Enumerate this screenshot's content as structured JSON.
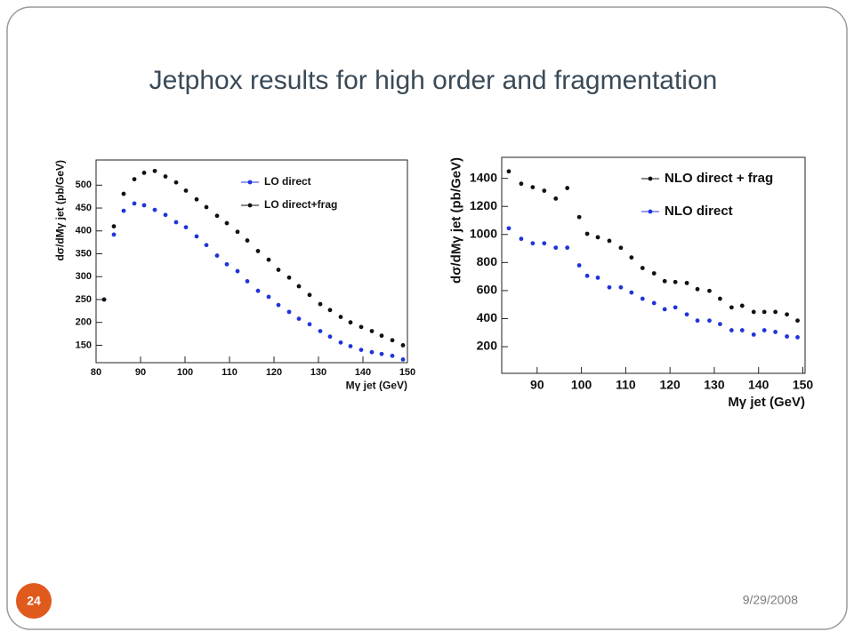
{
  "slide": {
    "title": "Jetphox results for high order  and fragmentation",
    "date": "9/29/2008",
    "number": "24"
  },
  "chart_data": [
    {
      "type": "scatter",
      "xlabel": "Mγ jet (GeV)",
      "ylabel": "dσ/dMγ jet (pb/GeV)",
      "xlim": [
        80,
        150
      ],
      "xticks": [
        80,
        90,
        100,
        110,
        120,
        130,
        140,
        150
      ],
      "ylim": [
        112,
        555
      ],
      "yticks": [
        150,
        200,
        250,
        300,
        350,
        400,
        450,
        500
      ],
      "legend": "upper right",
      "x": [
        81.8,
        84,
        86.2,
        88.6,
        90.8,
        93.2,
        95.6,
        98,
        100.2,
        102.6,
        104.8,
        107.2,
        109.4,
        111.8,
        114,
        116.4,
        118.8,
        121,
        123.4,
        125.6,
        128,
        130.4,
        132.6,
        135,
        137.2,
        139.6,
        142,
        144.2,
        146.6,
        149
      ],
      "series": [
        {
          "name": "LO direct",
          "color": "#1f35d8",
          "values": [
            250,
            392,
            444,
            460,
            456,
            446,
            435,
            419,
            408,
            388,
            369,
            346,
            327,
            312,
            290,
            269,
            256,
            238,
            223,
            208,
            196,
            181,
            169,
            156,
            148,
            140,
            135,
            131,
            127,
            119
          ]
        },
        {
          "name": "LO direct+frag",
          "color": "#111111",
          "values": [
            250,
            410,
            481,
            513,
            527,
            531,
            519,
            506,
            488,
            469,
            452,
            433,
            417,
            398,
            379,
            356,
            337,
            315,
            298,
            279,
            260,
            240,
            227,
            212,
            200,
            190,
            181,
            171,
            161,
            150
          ]
        }
      ]
    },
    {
      "type": "scatter",
      "xlabel": "Mγ jet (GeV)",
      "ylabel": "dσ/dMγ jet (pb/GeV)",
      "xlim": [
        82,
        150.5
      ],
      "xticks": [
        90,
        100,
        110,
        120,
        130,
        140,
        150
      ],
      "ylim": [
        10,
        1550
      ],
      "yticks": [
        200,
        400,
        600,
        800,
        1000,
        1200,
        1400
      ],
      "legend": "upper right",
      "x": [
        83.6,
        86.4,
        89,
        91.6,
        94.2,
        96.8,
        99.5,
        101.3,
        103.7,
        106.3,
        108.9,
        111.3,
        113.8,
        116.4,
        118.8,
        121.2,
        123.8,
        126.2,
        128.9,
        131.3,
        133.9,
        136.3,
        138.9,
        141.3,
        143.8,
        146.4,
        148.8
      ],
      "series": [
        {
          "name": "NLO direct + frag",
          "color": "#111111",
          "values": [
            1450,
            1362,
            1337,
            1312,
            1256,
            1331,
            1124,
            1005,
            980,
            955,
            905,
            836,
            761,
            723,
            667,
            661,
            654,
            610,
            598,
            542,
            480,
            492,
            448,
            448,
            448,
            430,
            386
          ]
        },
        {
          "name": "NLO direct",
          "color": "#1f35d8",
          "values": [
            1044,
            969,
            937,
            937,
            906,
            906,
            780,
            705,
            692,
            623,
            623,
            586,
            542,
            511,
            467,
            480,
            430,
            386,
            386,
            361,
            317,
            317,
            286,
            317,
            305,
            273,
            267
          ]
        }
      ]
    }
  ]
}
